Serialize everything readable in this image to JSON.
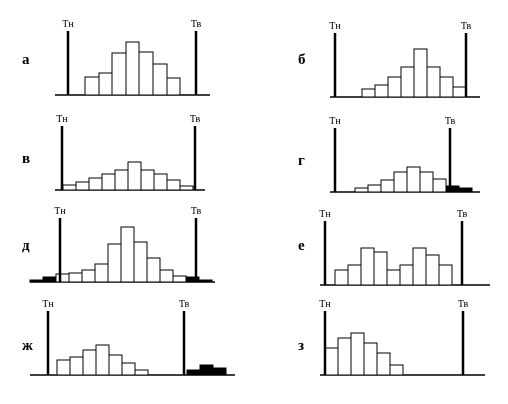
{
  "chart_data": [
    {
      "type": "histogram",
      "label": "а",
      "xlim": [
        0,
        155
      ],
      "ylim": [
        0,
        70
      ],
      "bins": [
        30,
        44,
        57,
        71,
        84,
        98,
        112,
        125
      ],
      "values": [
        18,
        22,
        42,
        53,
        43,
        31,
        17
      ],
      "bar_colors": [
        "#ffffff",
        "#ffffff",
        "#ffffff",
        "#ffffff",
        "#ffffff",
        "#ffffff",
        "#ffffff"
      ],
      "lower_limit": {
        "label": "Тн",
        "value": 13
      },
      "upper_limit": {
        "label": "Тв",
        "value": 141
      }
    },
    {
      "type": "histogram",
      "label": "б",
      "xlim": [
        0,
        150
      ],
      "ylim": [
        0,
        70
      ],
      "bins": [
        32,
        45,
        58,
        71,
        84,
        97,
        110,
        123,
        136
      ],
      "values": [
        8,
        12,
        20,
        30,
        48,
        30,
        20,
        10
      ],
      "bar_colors": [
        "#ffffff",
        "#ffffff",
        "#ffffff",
        "#ffffff",
        "#ffffff",
        "#ffffff",
        "#ffffff",
        "#ffffff"
      ],
      "lower_limit": {
        "label": "Тн",
        "value": 5
      },
      "upper_limit": {
        "label": "Тв",
        "value": 136
      }
    },
    {
      "type": "histogram",
      "label": "в",
      "xlim": [
        0,
        150
      ],
      "ylim": [
        0,
        70
      ],
      "bins": [
        8,
        21,
        34,
        47,
        60,
        73,
        86,
        99,
        112,
        125,
        138
      ],
      "values": [
        5,
        8,
        12,
        16,
        20,
        28,
        20,
        16,
        10,
        4
      ],
      "bar_colors": [
        "#ffffff",
        "#ffffff",
        "#ffffff",
        "#ffffff",
        "#ffffff",
        "#ffffff",
        "#ffffff",
        "#ffffff",
        "#ffffff",
        "#ffffff"
      ],
      "lower_limit": {
        "label": "Тн",
        "value": 7
      },
      "upper_limit": {
        "label": "Тв",
        "value": 140
      }
    },
    {
      "type": "histogram",
      "label": "г",
      "xlim": [
        0,
        150
      ],
      "ylim": [
        0,
        70
      ],
      "bins": [
        25,
        38,
        51,
        64,
        77,
        90,
        103,
        116,
        129,
        142
      ],
      "values": [
        4,
        7,
        12,
        20,
        25,
        20,
        13,
        6,
        4
      ],
      "bar_colors": [
        "#ffffff",
        "#ffffff",
        "#ffffff",
        "#ffffff",
        "#ffffff",
        "#ffffff",
        "#ffffff",
        "#000000",
        "#000000"
      ],
      "lower_limit": {
        "label": "Тн",
        "value": 5
      },
      "upper_limit": {
        "label": "Тв",
        "value": 120
      }
    },
    {
      "type": "histogram",
      "label": "д",
      "xlim": [
        0,
        185
      ],
      "ylim": [
        0,
        70
      ],
      "bins": [
        0,
        13,
        26,
        39,
        52,
        65,
        78,
        91,
        104,
        117,
        130,
        143,
        156,
        169,
        182
      ],
      "values": [
        2,
        5,
        8,
        9,
        12,
        18,
        38,
        55,
        40,
        24,
        12,
        6,
        5,
        2
      ],
      "bar_colors": [
        "#000000",
        "#000000",
        "#ffffff",
        "#ffffff",
        "#ffffff",
        "#ffffff",
        "#ffffff",
        "#ffffff",
        "#ffffff",
        "#ffffff",
        "#ffffff",
        "#ffffff",
        "#000000",
        "#000000"
      ],
      "lower_limit": {
        "label": "Тн",
        "value": 30
      },
      "upper_limit": {
        "label": "Тв",
        "value": 166
      }
    },
    {
      "type": "histogram",
      "label": "е",
      "xlim": [
        0,
        170
      ],
      "ylim": [
        0,
        70
      ],
      "bins": [
        15,
        28,
        41,
        54,
        67,
        80,
        93,
        106,
        119,
        132
      ],
      "values": [
        15,
        20,
        37,
        33,
        15,
        20,
        37,
        30,
        20
      ],
      "bar_colors": [
        "#ffffff",
        "#ffffff",
        "#ffffff",
        "#ffffff",
        "#ffffff",
        "#ffffff",
        "#ffffff",
        "#ffffff",
        "#ffffff"
      ],
      "lower_limit": {
        "label": "Тн",
        "value": 5
      },
      "upper_limit": {
        "label": "Тв",
        "value": 142
      }
    },
    {
      "type": "histogram",
      "label": "ж",
      "xlim": [
        0,
        205
      ],
      "ylim": [
        0,
        70
      ],
      "bins": [
        27,
        40,
        53,
        66,
        79,
        92,
        105,
        118,
        131,
        144,
        157,
        170,
        183,
        196
      ],
      "values": [
        15,
        18,
        25,
        30,
        20,
        12,
        5,
        0,
        0,
        0,
        5,
        10,
        7
      ],
      "bar_colors": [
        "#ffffff",
        "#ffffff",
        "#ffffff",
        "#ffffff",
        "#ffffff",
        "#ffffff",
        "#ffffff",
        "#ffffff",
        "#ffffff",
        "#ffffff",
        "#000000",
        "#000000",
        "#000000"
      ],
      "lower_limit": {
        "label": "Тн",
        "value": 18
      },
      "upper_limit": {
        "label": "Тв",
        "value": 154
      }
    },
    {
      "type": "histogram",
      "label": "з",
      "xlim": [
        0,
        165
      ],
      "ylim": [
        0,
        70
      ],
      "bins": [
        5,
        18,
        31,
        44,
        57,
        70,
        83
      ],
      "values": [
        27,
        37,
        42,
        32,
        22,
        10
      ],
      "bar_colors": [
        "#ffffff",
        "#ffffff",
        "#ffffff",
        "#ffffff",
        "#ffffff",
        "#ffffff"
      ],
      "lower_limit": {
        "label": "Тн",
        "value": 5
      },
      "upper_limit": {
        "label": "Тв",
        "value": 143
      }
    }
  ]
}
